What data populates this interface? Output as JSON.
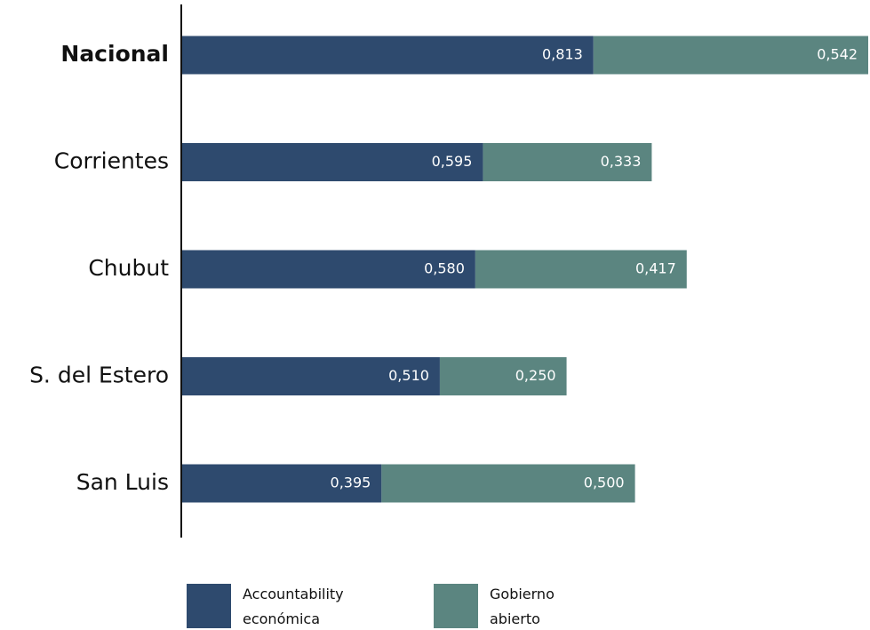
{
  "chart_data": {
    "type": "stacked-barh",
    "categories": [
      "Nacional",
      "Corrientes",
      "Chubut",
      "S. del Estero",
      "San Luis"
    ],
    "series": [
      {
        "name": "Accountability económica",
        "color": "#2e4a6e",
        "values": [
          0.813,
          0.595,
          0.58,
          0.51,
          0.395
        ],
        "value_labels": [
          "0,813",
          "0,595",
          "0,580",
          "0,510",
          "0,395"
        ]
      },
      {
        "name": "Gobierno abierto",
        "color": "#5b8580",
        "values": [
          0.542,
          0.333,
          0.417,
          0.25,
          0.5
        ],
        "value_labels": [
          "0,542",
          "0,333",
          "0,417",
          "0,250",
          "0,500"
        ]
      }
    ],
    "legend": "bottom"
  }
}
